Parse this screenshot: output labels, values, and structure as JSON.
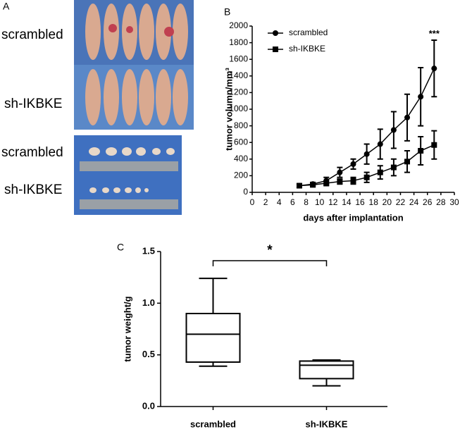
{
  "panel_a": {
    "panel_label": "A",
    "photo_labels": [
      "scrambled",
      "sh-IKBKE",
      "scrambled",
      "sh-IKBKE"
    ]
  },
  "chart_data": [
    {
      "type": "line",
      "panel_label": "B",
      "x_label": "days after implantation",
      "y_label": "tumor volumn/mm³",
      "x": [
        7,
        9,
        11,
        13,
        15,
        17,
        19,
        21,
        23,
        25,
        27
      ],
      "series": [
        {
          "name": "scrambled",
          "color": "#000000",
          "marker": "circle",
          "values": [
            80,
            100,
            140,
            240,
            340,
            460,
            580,
            750,
            900,
            1150,
            1490
          ],
          "errors": [
            20,
            20,
            40,
            60,
            60,
            120,
            180,
            220,
            280,
            350,
            340
          ]
        },
        {
          "name": "sh-IKBKE",
          "color": "#000000",
          "marker": "square",
          "values": [
            80,
            90,
            110,
            130,
            140,
            180,
            240,
            300,
            370,
            500,
            570
          ],
          "errors": [
            20,
            20,
            30,
            30,
            40,
            60,
            80,
            100,
            130,
            170,
            170
          ]
        }
      ],
      "annotation": {
        "text": "***",
        "x": 27,
        "y": 1900
      },
      "xlim": [
        0,
        30
      ],
      "xticks": [
        0,
        2,
        4,
        6,
        8,
        10,
        12,
        14,
        16,
        18,
        20,
        22,
        24,
        26,
        28,
        30
      ],
      "ylim": [
        0,
        2000
      ],
      "yticks": [
        0,
        200,
        400,
        600,
        800,
        1000,
        1200,
        1400,
        1600,
        1800,
        2000
      ],
      "legend": "upper-left"
    },
    {
      "type": "box",
      "panel_label": "C",
      "y_label": "tumor weight/g",
      "categories": [
        "scrambled",
        "sh-IKBKE"
      ],
      "boxes": [
        {
          "min": 0.39,
          "q1": 0.43,
          "median": 0.7,
          "q3": 0.9,
          "max": 1.24
        },
        {
          "min": 0.2,
          "q1": 0.27,
          "median": 0.4,
          "q3": 0.44,
          "max": 0.45
        }
      ],
      "annotation": "*",
      "ylim": [
        0,
        1.5
      ],
      "yticks": [
        {
          "value": 0,
          "label": "0.0"
        },
        0.5,
        {
          "value": 1,
          "label": "1.0"
        },
        1.5
      ]
    }
  ]
}
